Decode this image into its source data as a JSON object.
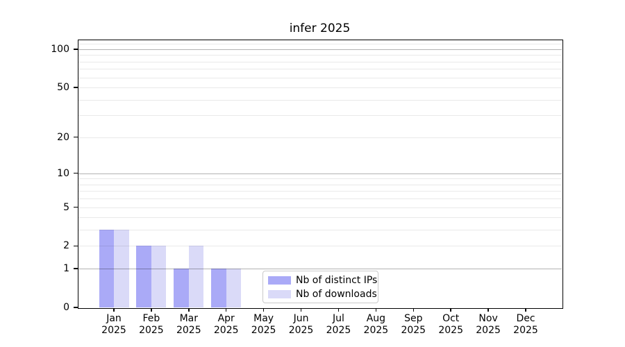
{
  "title": "infer 2025",
  "chart_data": {
    "type": "bar",
    "title": "infer 2025",
    "categories": [
      "Jan 2025",
      "Feb 2025",
      "Mar 2025",
      "Apr 2025",
      "May 2025",
      "Jun 2025",
      "Jul 2025",
      "Aug 2025",
      "Sep 2025",
      "Oct 2025",
      "Nov 2025",
      "Dec 2025"
    ],
    "series": [
      {
        "name": "Nb of distinct IPs",
        "color": "#aaaaf7",
        "values": [
          3,
          2,
          1,
          1,
          0,
          0,
          0,
          0,
          0,
          0,
          0,
          0
        ]
      },
      {
        "name": "Nb of downloads",
        "color": "#dadaf8",
        "values": [
          3,
          2,
          2,
          1,
          0,
          0,
          0,
          0,
          0,
          0,
          0,
          0
        ]
      }
    ],
    "yscale": "log10(1+x)",
    "ylim": [
      0,
      119
    ],
    "yticks": [
      0,
      1,
      2,
      5,
      10,
      20,
      50,
      100
    ],
    "major_gridlines": [
      1,
      10,
      100
    ],
    "minor_gridlines": [
      2,
      3,
      4,
      5,
      6,
      7,
      8,
      9,
      20,
      30,
      40,
      50,
      60,
      70,
      80,
      90,
      110
    ],
    "grid": true,
    "legend": {
      "position": "bottom-center",
      "border_color": "#c9c9c9"
    },
    "colors": {
      "axis": "#000000",
      "background": "#ffffff"
    }
  }
}
